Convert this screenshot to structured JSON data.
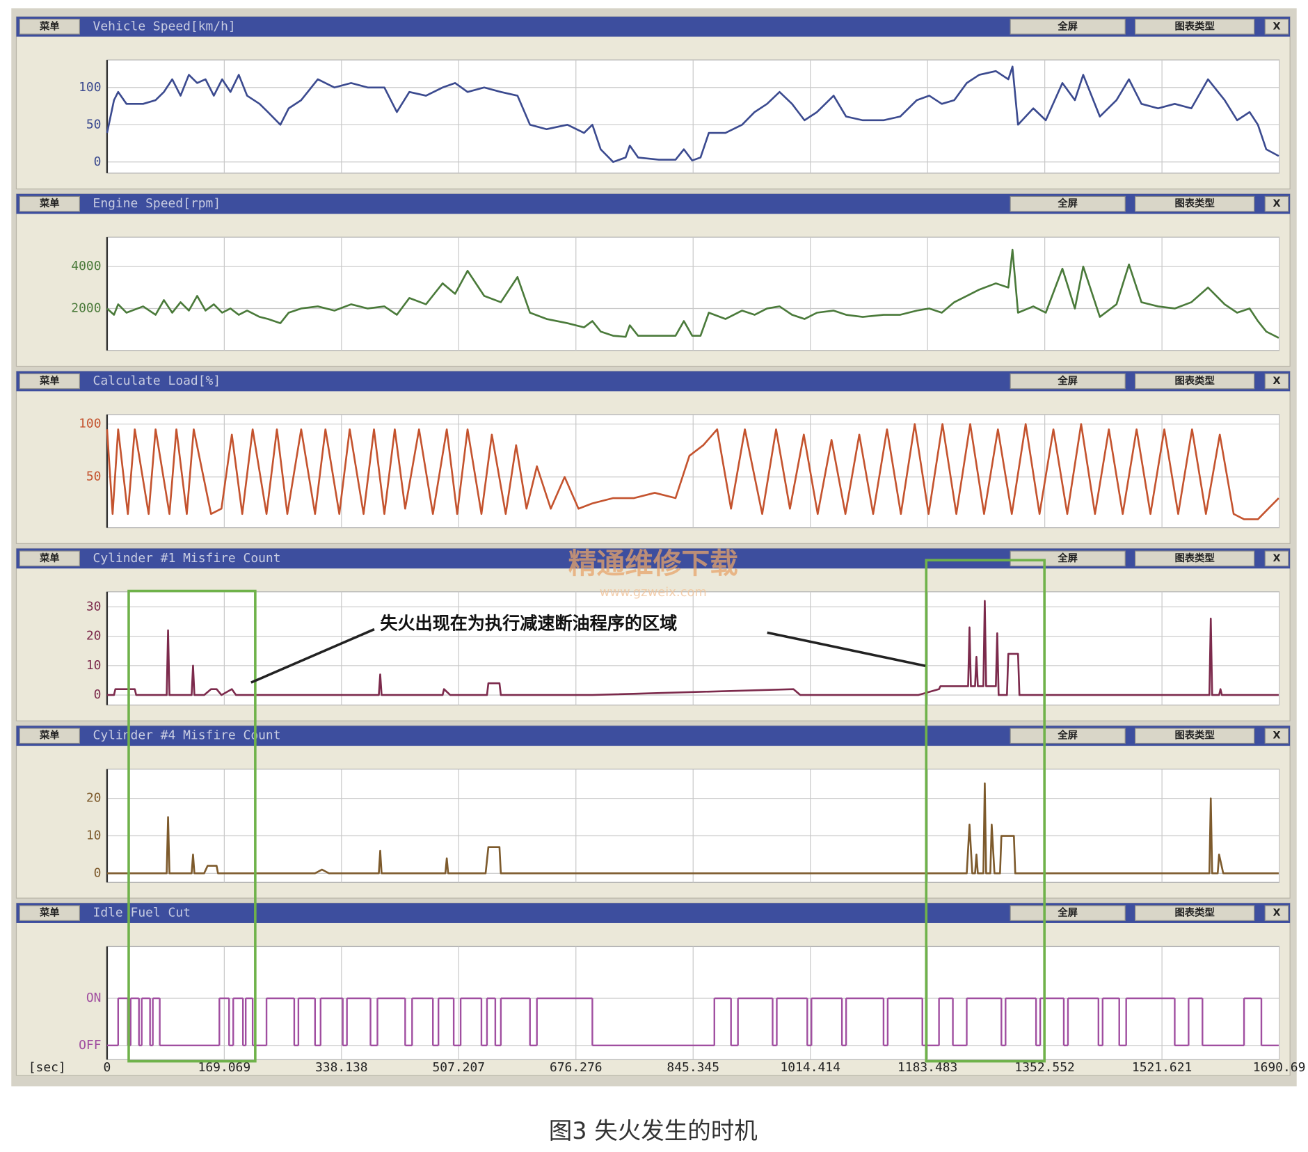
{
  "toolbar": {
    "menu": "菜单",
    "fullscreen": "全屏",
    "chart_type": "图表类型",
    "close": "X"
  },
  "annotation": "失火出现在为执行减速断油程序的区域",
  "caption": "图3 失火发生的时机",
  "watermark": {
    "title": "精通维修下载",
    "url": "www.gzweix.com"
  },
  "chart_data": [
    {
      "type": "line",
      "title": "Vehicle Speed[km/h]",
      "color": "#3b4a8f",
      "xlim": [
        0,
        1690.69
      ],
      "xticks": [
        0,
        169.069,
        338.138,
        507.207,
        676.276,
        845.345,
        1014.414,
        1183.483,
        1352.552,
        1521.621,
        1690.69
      ],
      "ylim": [
        -15,
        137
      ],
      "yticks": [
        0,
        50,
        100
      ],
      "grid": true,
      "x": [
        0,
        10,
        16,
        28,
        52,
        70,
        82,
        94,
        106,
        118,
        130,
        142,
        154,
        166,
        178,
        190,
        202,
        220,
        232,
        250,
        262,
        280,
        304,
        328,
        352,
        376,
        400,
        418,
        436,
        460,
        484,
        502,
        520,
        544,
        568,
        592,
        610,
        634,
        664,
        688,
        700,
        712,
        730,
        748,
        754,
        766,
        796,
        820,
        832,
        844,
        856,
        868,
        892,
        916,
        934,
        952,
        970,
        988,
        1006,
        1024,
        1048,
        1066,
        1090,
        1120,
        1144,
        1168,
        1186,
        1204,
        1222,
        1240,
        1258,
        1282,
        1300,
        1306,
        1314,
        1336,
        1354,
        1378,
        1396,
        1408,
        1432,
        1456,
        1474,
        1492,
        1516,
        1540,
        1564,
        1588,
        1612,
        1630,
        1648,
        1660,
        1672,
        1690
      ],
      "values": [
        39,
        83,
        94,
        78,
        78,
        83,
        94,
        111,
        89,
        117,
        106,
        111,
        89,
        111,
        94,
        117,
        89,
        78,
        67,
        50,
        72,
        83,
        111,
        100,
        106,
        100,
        100,
        67,
        94,
        89,
        100,
        106,
        94,
        100,
        94,
        89,
        50,
        44,
        50,
        39,
        50,
        17,
        0,
        6,
        22,
        6,
        3,
        3,
        17,
        2,
        6,
        39,
        39,
        50,
        67,
        78,
        94,
        78,
        56,
        67,
        89,
        61,
        56,
        56,
        61,
        83,
        89,
        78,
        83,
        106,
        117,
        122,
        111,
        128,
        50,
        72,
        56,
        106,
        83,
        117,
        61,
        83,
        111,
        78,
        72,
        78,
        72,
        111,
        83,
        56,
        67,
        50,
        17,
        8
      ]
    },
    {
      "type": "line",
      "title": "Engine Speed[rpm]",
      "color": "#4a7a3a",
      "xlim": [
        0,
        1690.69
      ],
      "xticks": [
        0,
        169.069,
        338.138,
        507.207,
        676.276,
        845.345,
        1014.414,
        1183.483,
        1352.552,
        1521.621,
        1690.69
      ],
      "ylim": [
        0,
        5400
      ],
      "yticks": [
        2000,
        4000
      ],
      "grid": true,
      "x": [
        0,
        10,
        16,
        28,
        52,
        70,
        82,
        94,
        106,
        118,
        130,
        142,
        154,
        166,
        178,
        190,
        202,
        220,
        232,
        250,
        262,
        280,
        304,
        328,
        352,
        376,
        400,
        418,
        436,
        460,
        484,
        502,
        520,
        544,
        568,
        592,
        610,
        634,
        664,
        688,
        700,
        712,
        730,
        748,
        754,
        766,
        796,
        820,
        832,
        844,
        856,
        868,
        892,
        916,
        934,
        952,
        970,
        988,
        1006,
        1024,
        1048,
        1066,
        1090,
        1120,
        1144,
        1168,
        1186,
        1204,
        1222,
        1240,
        1258,
        1282,
        1300,
        1306,
        1314,
        1336,
        1354,
        1378,
        1396,
        1408,
        1432,
        1456,
        1474,
        1492,
        1516,
        1540,
        1564,
        1588,
        1612,
        1630,
        1648,
        1660,
        1672,
        1690
      ],
      "values": [
        2000,
        1700,
        2200,
        1800,
        2100,
        1700,
        2400,
        1800,
        2300,
        1900,
        2600,
        1900,
        2200,
        1800,
        2000,
        1700,
        1900,
        1600,
        1500,
        1300,
        1800,
        2000,
        2100,
        1900,
        2200,
        2000,
        2100,
        1700,
        2500,
        2200,
        3200,
        2700,
        3800,
        2600,
        2300,
        3500,
        1800,
        1500,
        1300,
        1100,
        1400,
        900,
        700,
        650,
        1200,
        700,
        700,
        700,
        1400,
        700,
        700,
        1800,
        1500,
        1900,
        1700,
        2000,
        2100,
        1700,
        1500,
        1800,
        1900,
        1700,
        1600,
        1700,
        1700,
        1900,
        2000,
        1800,
        2300,
        2600,
        2900,
        3200,
        3000,
        4800,
        1800,
        2100,
        1800,
        3900,
        2000,
        4000,
        1600,
        2200,
        4100,
        2300,
        2100,
        2000,
        2300,
        3000,
        2200,
        1800,
        2000,
        1400,
        900,
        600
      ]
    },
    {
      "type": "line",
      "title": "Calculate Load[%]",
      "color": "#c4532e",
      "xlim": [
        0,
        1690.69
      ],
      "xticks": [
        0,
        169.069,
        338.138,
        507.207,
        676.276,
        845.345,
        1014.414,
        1183.483,
        1352.552,
        1521.621,
        1690.69
      ],
      "ylim": [
        2,
        109
      ],
      "yticks": [
        50,
        100
      ],
      "grid": true,
      "x": [
        0,
        8,
        16,
        30,
        40,
        60,
        70,
        90,
        100,
        115,
        125,
        150,
        165,
        180,
        195,
        210,
        230,
        245,
        260,
        280,
        300,
        315,
        335,
        350,
        370,
        385,
        400,
        415,
        430,
        450,
        470,
        490,
        505,
        520,
        540,
        555,
        575,
        590,
        605,
        620,
        640,
        660,
        680,
        700,
        730,
        760,
        790,
        820,
        840,
        860,
        880,
        900,
        920,
        945,
        965,
        985,
        1005,
        1025,
        1045,
        1065,
        1085,
        1105,
        1125,
        1145,
        1165,
        1185,
        1205,
        1225,
        1245,
        1265,
        1285,
        1305,
        1325,
        1345,
        1365,
        1385,
        1405,
        1425,
        1445,
        1465,
        1485,
        1505,
        1525,
        1545,
        1565,
        1585,
        1605,
        1625,
        1640,
        1660,
        1675,
        1690
      ],
      "values": [
        95,
        15,
        95,
        15,
        95,
        15,
        95,
        15,
        95,
        15,
        95,
        15,
        20,
        90,
        15,
        95,
        15,
        95,
        15,
        95,
        15,
        95,
        15,
        95,
        15,
        95,
        15,
        95,
        20,
        95,
        15,
        95,
        15,
        95,
        15,
        90,
        15,
        80,
        20,
        60,
        20,
        50,
        20,
        25,
        30,
        30,
        35,
        30,
        70,
        80,
        95,
        20,
        95,
        15,
        95,
        20,
        90,
        15,
        85,
        15,
        90,
        15,
        95,
        15,
        100,
        15,
        100,
        15,
        100,
        15,
        95,
        15,
        100,
        15,
        95,
        15,
        100,
        15,
        95,
        15,
        95,
        15,
        95,
        15,
        95,
        15,
        90,
        15,
        10,
        10,
        20,
        30
      ]
    },
    {
      "type": "line",
      "title": "Cylinder #1 Misfire Count",
      "color": "#7c2a4c",
      "xlim": [
        0,
        1690.69
      ],
      "xticks": [
        0,
        169.069,
        338.138,
        507.207,
        676.276,
        845.345,
        1014.414,
        1183.483,
        1352.552,
        1521.621,
        1690.69
      ],
      "ylim": [
        -3.4,
        35.1
      ],
      "yticks": [
        0,
        10,
        20,
        30
      ],
      "grid": true,
      "x": [
        0,
        10,
        12,
        40,
        42,
        86,
        88,
        90,
        122,
        124,
        126,
        140,
        150,
        158,
        165,
        180,
        186,
        392,
        394,
        396,
        484,
        486,
        495,
        548,
        550,
        566,
        568,
        700,
        990,
        1000,
        1170,
        1200,
        1202,
        1242,
        1244,
        1246,
        1252,
        1254,
        1256,
        1264,
        1266,
        1268,
        1282,
        1284,
        1286,
        1298,
        1300,
        1314,
        1316,
        1590,
        1592,
        1594,
        1604,
        1606,
        1608,
        1690
      ],
      "values": [
        0,
        0,
        2,
        2,
        0,
        0,
        22,
        0,
        0,
        10,
        0,
        0,
        2,
        2,
        0,
        2,
        0,
        0,
        7,
        0,
        0,
        2,
        0,
        0,
        4,
        4,
        0,
        0,
        2,
        0,
        0,
        2,
        3,
        3,
        23,
        3,
        3,
        13,
        3,
        3,
        32,
        3,
        3,
        21,
        0,
        0,
        14,
        14,
        0,
        0,
        26,
        0,
        0,
        2,
        0,
        0
      ]
    },
    {
      "type": "line",
      "title": "Cylinder #4 Misfire Count",
      "color": "#7d5a2c",
      "xlim": [
        0,
        1690.69
      ],
      "xticks": [
        0,
        169.069,
        338.138,
        507.207,
        676.276,
        845.345,
        1014.414,
        1183.483,
        1352.552,
        1521.621,
        1690.69
      ],
      "ylim": [
        -2.4,
        27.8
      ],
      "yticks": [
        0,
        10,
        20
      ],
      "grid": true,
      "x": [
        0,
        86,
        88,
        90,
        122,
        124,
        126,
        140,
        145,
        158,
        160,
        300,
        310,
        320,
        392,
        394,
        396,
        488,
        490,
        492,
        546,
        550,
        566,
        568,
        1240,
        1244,
        1248,
        1252,
        1254,
        1256,
        1264,
        1266,
        1268,
        1274,
        1276,
        1280,
        1288,
        1290,
        1308,
        1310,
        1590,
        1592,
        1594,
        1602,
        1604,
        1610,
        1690
      ],
      "values": [
        0,
        0,
        15,
        0,
        0,
        5,
        0,
        0,
        2,
        2,
        0,
        0,
        1,
        0,
        0,
        6,
        0,
        0,
        4,
        0,
        0,
        7,
        7,
        0,
        0,
        13,
        0,
        0,
        5,
        0,
        0,
        24,
        0,
        0,
        13,
        0,
        0,
        10,
        10,
        0,
        0,
        20,
        0,
        0,
        5,
        0,
        0
      ]
    },
    {
      "type": "line",
      "title": "Idle Fuel Cut",
      "color": "#a04ea0",
      "step": "post",
      "xlabel": "[sec]",
      "xlim": [
        0,
        1690.69
      ],
      "xticks": [
        0,
        169.069,
        338.138,
        507.207,
        676.276,
        845.345,
        1014.414,
        1183.483,
        1352.552,
        1521.621,
        1690.69
      ],
      "ylim": [
        -0.3,
        2.1
      ],
      "yticks": [
        {
          "value": 0,
          "label": "OFF"
        },
        {
          "value": 1,
          "label": "ON"
        }
      ],
      "grid": true,
      "x": [
        0,
        16,
        30,
        34,
        46,
        50,
        62,
        66,
        76,
        162,
        176,
        182,
        196,
        200,
        210,
        230,
        270,
        276,
        300,
        308,
        340,
        346,
        380,
        390,
        430,
        440,
        470,
        478,
        500,
        510,
        540,
        548,
        560,
        568,
        610,
        620,
        700,
        876,
        900,
        910,
        960,
        966,
        1010,
        1016,
        1060,
        1066,
        1120,
        1126,
        1176,
        1200,
        1220,
        1240,
        1290,
        1296,
        1340,
        1346,
        1380,
        1386,
        1430,
        1436,
        1460,
        1470,
        1540,
        1560,
        1580,
        1640,
        1665,
        1690
      ],
      "values": [
        0,
        1,
        0,
        1,
        0,
        1,
        0,
        1,
        0,
        1,
        0,
        1,
        0,
        1,
        0,
        1,
        0,
        1,
        0,
        1,
        0,
        1,
        0,
        1,
        0,
        1,
        0,
        1,
        0,
        1,
        0,
        1,
        0,
        1,
        0,
        1,
        0,
        1,
        0,
        1,
        0,
        1,
        0,
        1,
        0,
        1,
        0,
        1,
        0,
        1,
        0,
        1,
        0,
        1,
        0,
        1,
        0,
        1,
        0,
        1,
        0,
        1,
        0,
        1,
        0,
        1,
        0,
        0
      ]
    }
  ]
}
